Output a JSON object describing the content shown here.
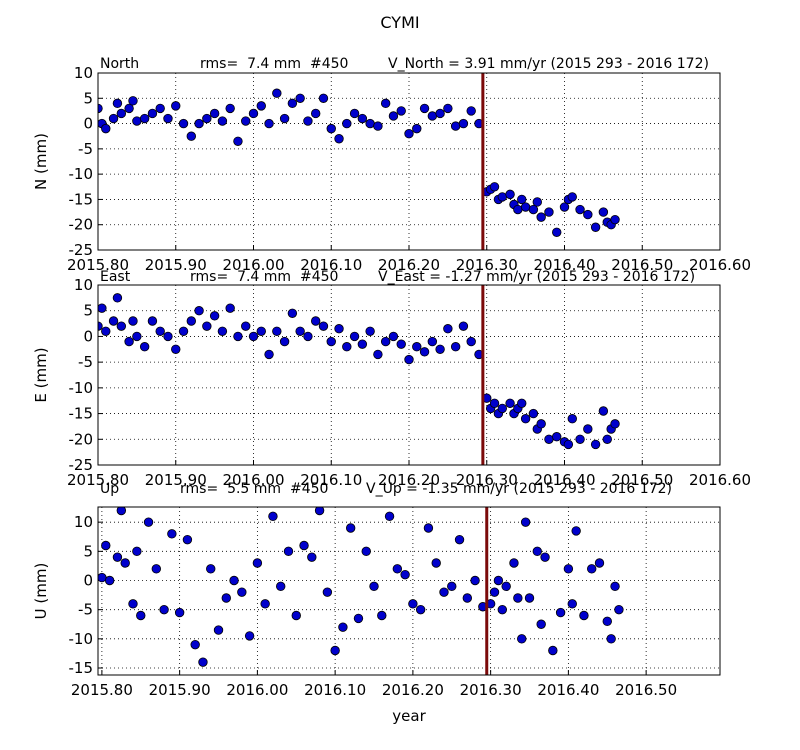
{
  "title": "CYMI",
  "chart_data": [
    {
      "type": "scatter",
      "name": "North",
      "rms": "rms=  7.4 mm  #450",
      "velocity": "V_North = 3.91 mm/yr (2015 293 - 2016 172)",
      "y_label": "N (mm)",
      "color": "#0000cc",
      "grid": true,
      "vline": 2016.295,
      "vline_color": "#7b0a0a",
      "xlim": [
        2015.8,
        2016.6
      ],
      "ylim": [
        -25,
        10
      ],
      "xticks": [
        {
          "value": 2015.8,
          "label": "2015.80"
        },
        {
          "value": 2015.9,
          "label": "2015.90"
        },
        {
          "value": 2016.0,
          "label": "2016.00"
        },
        {
          "value": 2016.1,
          "label": "2016.10"
        },
        {
          "value": 2016.2,
          "label": "2016.20"
        },
        {
          "value": 2016.3,
          "label": "2016.30"
        },
        {
          "value": 2016.4,
          "label": "2016.40"
        },
        {
          "value": 2016.5,
          "label": "2016.50"
        },
        {
          "value": 2016.6,
          "label": "2016.60"
        }
      ],
      "yticks": [
        -25,
        -20,
        -15,
        -10,
        -5,
        0,
        5,
        10
      ],
      "x": [
        2015.8,
        2015.805,
        2015.81,
        2015.82,
        2015.825,
        2015.83,
        2015.84,
        2015.845,
        2015.85,
        2015.86,
        2015.87,
        2015.88,
        2015.89,
        2015.9,
        2015.91,
        2015.92,
        2015.93,
        2015.94,
        2015.95,
        2015.96,
        2015.97,
        2015.98,
        2015.99,
        2016.0,
        2016.01,
        2016.02,
        2016.03,
        2016.04,
        2016.05,
        2016.06,
        2016.07,
        2016.08,
        2016.09,
        2016.1,
        2016.11,
        2016.12,
        2016.13,
        2016.14,
        2016.15,
        2016.16,
        2016.17,
        2016.18,
        2016.19,
        2016.2,
        2016.21,
        2016.22,
        2016.23,
        2016.24,
        2016.25,
        2016.26,
        2016.27,
        2016.28,
        2016.29,
        2016.3,
        2016.305,
        2016.31,
        2016.315,
        2016.32,
        2016.33,
        2016.335,
        2016.34,
        2016.345,
        2016.35,
        2016.36,
        2016.365,
        2016.37,
        2016.38,
        2016.39,
        2016.4,
        2016.405,
        2016.41,
        2016.42,
        2016.43,
        2016.44,
        2016.45,
        2016.455,
        2016.46,
        2016.465
      ],
      "values": [
        3,
        0,
        -1,
        1,
        4,
        2,
        3,
        4.5,
        0.5,
        1,
        2,
        3,
        1,
        3.5,
        0,
        -2.5,
        0,
        1,
        2,
        0.5,
        3,
        -3.5,
        0.5,
        2,
        3.5,
        0,
        6,
        1,
        4,
        5,
        0.5,
        2,
        5,
        -1,
        -3,
        0,
        2,
        1,
        0,
        -0.5,
        4,
        1.5,
        2.5,
        -2,
        -1,
        3,
        1.5,
        2,
        3,
        -0.5,
        0,
        2.5,
        0,
        -13.5,
        -13,
        -12.5,
        -15,
        -14.5,
        -14,
        -16,
        -17,
        -15,
        -16.5,
        -17,
        -15.5,
        -18.5,
        -17.5,
        -21.5,
        -16.5,
        -15,
        -14.5,
        -17,
        -18,
        -20.5,
        -17.5,
        -19.5,
        -20,
        -19
      ]
    },
    {
      "type": "scatter",
      "name": "East",
      "rms": "rms=  7.4 mm  #450",
      "velocity": "V_East = -1.27 mm/yr (2015 293 - 2016 172)",
      "y_label": "E (mm)",
      "color": "#0000cc",
      "grid": true,
      "vline": 2016.295,
      "vline_color": "#7b0a0a",
      "xlim": [
        2015.8,
        2016.6
      ],
      "ylim": [
        -25,
        10
      ],
      "xticks": [
        {
          "value": 2015.8,
          "label": "2015.80"
        },
        {
          "value": 2015.9,
          "label": "2015.90"
        },
        {
          "value": 2016.0,
          "label": "2016.00"
        },
        {
          "value": 2016.1,
          "label": "2016.10"
        },
        {
          "value": 2016.2,
          "label": "2016.20"
        },
        {
          "value": 2016.3,
          "label": "2016.30"
        },
        {
          "value": 2016.4,
          "label": "2016.40"
        },
        {
          "value": 2016.5,
          "label": "2016.50"
        },
        {
          "value": 2016.6,
          "label": "2016.60"
        }
      ],
      "yticks": [
        -25,
        -20,
        -15,
        -10,
        -5,
        0,
        5,
        10
      ],
      "x": [
        2015.8,
        2015.805,
        2015.81,
        2015.82,
        2015.825,
        2015.83,
        2015.84,
        2015.845,
        2015.85,
        2015.86,
        2015.87,
        2015.88,
        2015.89,
        2015.9,
        2015.91,
        2015.92,
        2015.93,
        2015.94,
        2015.95,
        2015.96,
        2015.97,
        2015.98,
        2015.99,
        2016.0,
        2016.01,
        2016.02,
        2016.03,
        2016.04,
        2016.05,
        2016.06,
        2016.07,
        2016.08,
        2016.09,
        2016.1,
        2016.11,
        2016.12,
        2016.13,
        2016.14,
        2016.15,
        2016.16,
        2016.17,
        2016.18,
        2016.19,
        2016.2,
        2016.21,
        2016.22,
        2016.23,
        2016.24,
        2016.25,
        2016.26,
        2016.27,
        2016.28,
        2016.29,
        2016.3,
        2016.305,
        2016.31,
        2016.315,
        2016.32,
        2016.33,
        2016.335,
        2016.34,
        2016.345,
        2016.35,
        2016.36,
        2016.365,
        2016.37,
        2016.38,
        2016.39,
        2016.4,
        2016.405,
        2016.41,
        2016.42,
        2016.43,
        2016.44,
        2016.45,
        2016.455,
        2016.46,
        2016.465
      ],
      "values": [
        2,
        5.5,
        1,
        3,
        7.5,
        2,
        -1,
        3,
        0,
        -2,
        3,
        1,
        0,
        -2.5,
        1,
        3,
        5,
        2,
        4,
        1,
        5.5,
        0,
        2,
        0,
        1,
        -3.5,
        1,
        -1,
        4.5,
        1,
        0,
        3,
        2,
        -1,
        1.5,
        -2,
        0,
        -1.5,
        1,
        -3.5,
        -1,
        0,
        -1.5,
        -4.5,
        -2,
        -3,
        -1,
        -2.5,
        1.5,
        -2,
        2,
        -1,
        -3.5,
        -12,
        -14,
        -13,
        -15,
        -14,
        -13,
        -15,
        -14,
        -13,
        -16,
        -15,
        -18,
        -17,
        -20,
        -19.5,
        -20.5,
        -21,
        -16,
        -20,
        -18,
        -21,
        -14.5,
        -20,
        -18,
        -17
      ]
    },
    {
      "type": "scatter",
      "name": "Up",
      "rms": "rms=  5.5 mm  #450",
      "velocity": "V_Up = -1.35 mm/yr (2015 293 - 2016 172)",
      "y_label": "U (mm)",
      "x_label": "year",
      "color": "#0000cc",
      "grid": true,
      "vline": 2016.295,
      "vline_color": "#7b0a0a",
      "xlim": [
        2015.795,
        2016.595
      ],
      "ylim": [
        -16.2,
        12.6
      ],
      "xticks": [
        {
          "value": 2015.8,
          "label": "2015.80"
        },
        {
          "value": 2015.9,
          "label": "2015.90"
        },
        {
          "value": 2016.0,
          "label": "2016.00"
        },
        {
          "value": 2016.1,
          "label": "2016.10"
        },
        {
          "value": 2016.2,
          "label": "2016.20"
        },
        {
          "value": 2016.3,
          "label": "2016.30"
        },
        {
          "value": 2016.4,
          "label": "2016.40"
        },
        {
          "value": 2016.5,
          "label": "2016.50"
        }
      ],
      "yticks": [
        -15,
        -10,
        -5,
        0,
        5,
        10
      ],
      "x": [
        2015.8,
        2015.805,
        2015.81,
        2015.82,
        2015.825,
        2015.83,
        2015.84,
        2015.845,
        2015.85,
        2015.86,
        2015.87,
        2015.88,
        2015.89,
        2015.9,
        2015.91,
        2015.92,
        2015.93,
        2015.94,
        2015.95,
        2015.96,
        2015.97,
        2015.98,
        2015.99,
        2016.0,
        2016.01,
        2016.02,
        2016.03,
        2016.04,
        2016.05,
        2016.06,
        2016.07,
        2016.08,
        2016.09,
        2016.1,
        2016.11,
        2016.12,
        2016.13,
        2016.14,
        2016.15,
        2016.16,
        2016.17,
        2016.18,
        2016.19,
        2016.2,
        2016.21,
        2016.22,
        2016.23,
        2016.24,
        2016.25,
        2016.26,
        2016.27,
        2016.28,
        2016.29,
        2016.3,
        2016.305,
        2016.31,
        2016.315,
        2016.32,
        2016.33,
        2016.335,
        2016.34,
        2016.345,
        2016.35,
        2016.36,
        2016.365,
        2016.37,
        2016.38,
        2016.39,
        2016.4,
        2016.405,
        2016.41,
        2016.42,
        2016.43,
        2016.44,
        2016.45,
        2016.455,
        2016.46,
        2016.465
      ],
      "values": [
        0.5,
        6,
        0,
        4,
        12,
        3,
        -4,
        5,
        -6,
        10,
        2,
        -5,
        8,
        -5.5,
        7,
        -11,
        -14,
        2,
        -8.5,
        -3,
        0,
        -2,
        -9.5,
        3,
        -4,
        11,
        -1,
        5,
        -6,
        6,
        4,
        12,
        -2,
        -12,
        -8,
        9,
        -6.5,
        5,
        -1,
        -6,
        11,
        2,
        1,
        -4,
        -5,
        9,
        3,
        -2,
        -1,
        7,
        -3,
        0,
        -4.5,
        -4,
        -2,
        0,
        -5,
        -1,
        3,
        -3,
        -10,
        10,
        -3,
        5,
        -7.5,
        4,
        -12,
        -5.5,
        2,
        -4,
        8.5,
        -6,
        2,
        3,
        -7,
        -10,
        -1,
        -5
      ]
    }
  ]
}
